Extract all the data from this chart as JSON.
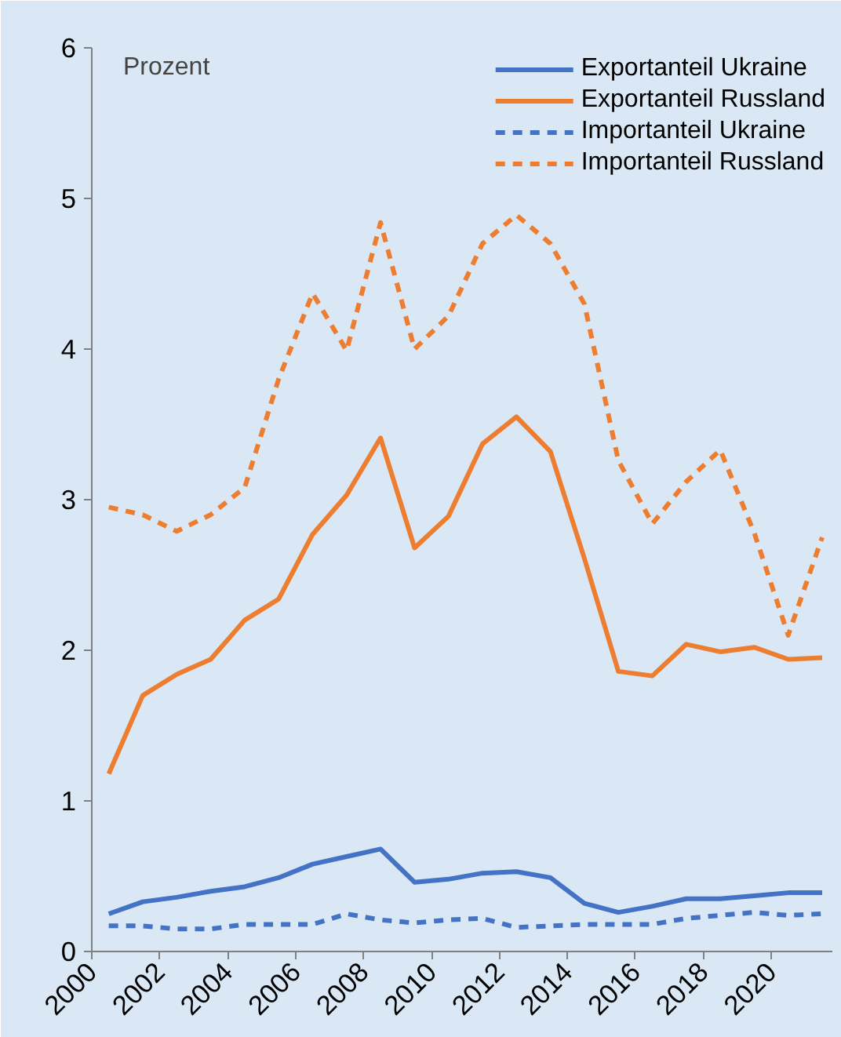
{
  "chart_data": {
    "type": "line",
    "ylabel": "Prozent",
    "x": [
      2000.5,
      2001.5,
      2002.5,
      2003.5,
      2004.5,
      2005.5,
      2006.5,
      2007.5,
      2008.5,
      2009.5,
      2010.5,
      2011.5,
      2012.5,
      2013.5,
      2014.5,
      2015.5,
      2016.5,
      2017.5,
      2018.5,
      2019.5,
      2020.5,
      2021.5
    ],
    "series": [
      {
        "name": "Exportanteil Ukraine",
        "color": "#4472c4",
        "line_style": "solid",
        "values": [
          0.25,
          0.33,
          0.36,
          0.4,
          0.43,
          0.49,
          0.58,
          0.63,
          0.68,
          0.46,
          0.48,
          0.52,
          0.53,
          0.49,
          0.32,
          0.26,
          0.3,
          0.35,
          0.35,
          0.37,
          0.39,
          0.39
        ]
      },
      {
        "name": "Exportanteil Russland",
        "color": "#ed7d31",
        "line_style": "solid",
        "values": [
          1.18,
          1.7,
          1.84,
          1.94,
          2.2,
          2.34,
          2.77,
          3.03,
          3.41,
          2.68,
          2.89,
          3.37,
          3.55,
          3.32,
          2.61,
          1.86,
          1.83,
          2.04,
          1.99,
          2.02,
          1.94,
          1.95
        ]
      },
      {
        "name": "Importanteil Ukraine",
        "color": "#4472c4",
        "line_style": "dashed",
        "values": [
          0.17,
          0.17,
          0.15,
          0.15,
          0.18,
          0.18,
          0.18,
          0.25,
          0.21,
          0.19,
          0.21,
          0.22,
          0.16,
          0.17,
          0.18,
          0.18,
          0.18,
          0.22,
          0.24,
          0.26,
          0.24,
          0.25
        ]
      },
      {
        "name": "Importanteil Russland",
        "color": "#ed7d31",
        "line_style": "dashed",
        "values": [
          2.95,
          2.9,
          2.79,
          2.9,
          3.08,
          3.8,
          4.37,
          3.99,
          4.84,
          4.0,
          4.22,
          4.7,
          4.89,
          4.7,
          4.3,
          3.26,
          2.84,
          3.12,
          3.33,
          2.78,
          2.1,
          2.75
        ]
      }
    ],
    "xlim": [
      2000,
      2021.8
    ],
    "ylim": [
      0,
      6
    ],
    "xticks": [
      2000,
      2002,
      2004,
      2006,
      2008,
      2010,
      2012,
      2014,
      2016,
      2018,
      2020
    ],
    "yticks": [
      0,
      1,
      2,
      3,
      4,
      5,
      6
    ],
    "grid": false,
    "legend": "top right",
    "marker": "none"
  }
}
